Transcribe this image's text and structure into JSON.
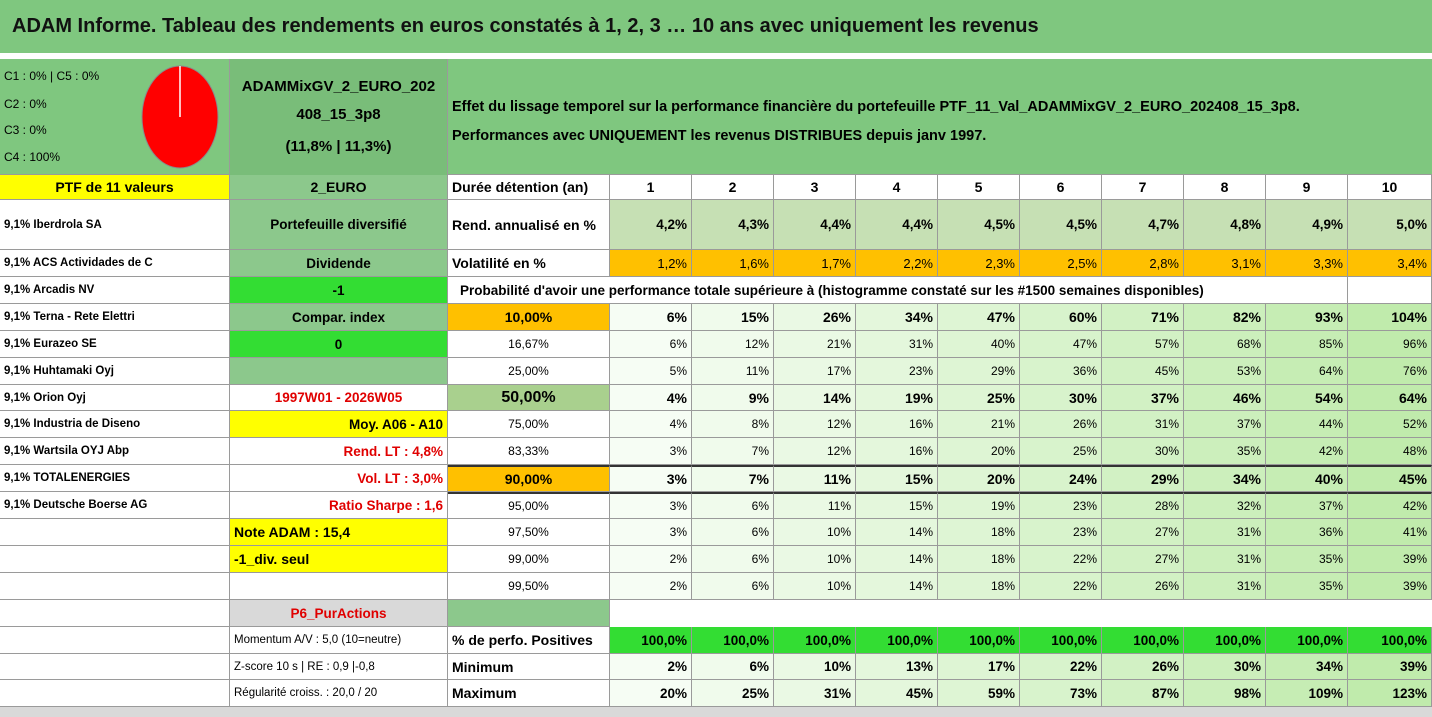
{
  "title": "ADAM Informe. Tableau des rendements en euros constatés à 1, 2, 3 … 10 ans avec uniquement les revenus",
  "pie": {
    "legend": [
      "C1 : 0% | C5 : 0%",
      "C2 : 0%",
      "C3 : 0%",
      "C4 : 100%"
    ]
  },
  "portfolio": {
    "name_lines": [
      "ADAMMixGV_2_EURO_202",
      "408_15_3p8"
    ],
    "ratios": "(11,8% | 11,3%)"
  },
  "description": [
    "Effet du lissage temporel sur la performance financière du portefeuille PTF_11_Val_ADAMMixGV_2_EURO_202408_15_3p8.",
    "Performances avec UNIQUEMENT les revenus DISTRIBUES depuis janv 1997."
  ],
  "table": {
    "header": [
      "PTF de 11 valeurs",
      "2_EURO",
      "Durée détention (an)",
      "1",
      "2",
      "3",
      "4",
      "5",
      "6",
      "7",
      "8",
      "9",
      "10"
    ],
    "rows": [
      [
        "9,1% Iberdrola SA",
        "Portefeuille diversifié",
        "Rend. annualisé en %",
        "4,2%",
        "4,3%",
        "4,4%",
        "4,4%",
        "4,5%",
        "4,5%",
        "4,7%",
        "4,8%",
        "4,9%",
        "5,0%"
      ],
      [
        "9,1% ACS Actividades de C",
        "Dividende",
        "Volatilité en %",
        "1,2%",
        "1,6%",
        "1,7%",
        "2,2%",
        "2,3%",
        "2,5%",
        "2,8%",
        "3,1%",
        "3,3%",
        "3,4%"
      ],
      [
        "9,1% Arcadis NV",
        "-1",
        "Probabilité d'avoir une performance totale supérieure à (histogramme constaté sur les #1500 semaines disponibles)"
      ],
      [
        "9,1% Terna - Rete Elettri",
        "Compar. index",
        "10,00%",
        "6%",
        "15%",
        "26%",
        "34%",
        "47%",
        "60%",
        "71%",
        "82%",
        "93%",
        "104%"
      ],
      [
        "9,1% Eurazeo SE",
        "0",
        "16,67%",
        "6%",
        "12%",
        "21%",
        "31%",
        "40%",
        "47%",
        "57%",
        "68%",
        "85%",
        "96%"
      ],
      [
        "9,1% Huhtamaki Oyj",
        null,
        "25,00%",
        "5%",
        "11%",
        "17%",
        "23%",
        "29%",
        "36%",
        "45%",
        "53%",
        "64%",
        "76%"
      ],
      [
        "9,1% Orion Oyj",
        "1997W01 - 2026W05",
        "50,00%",
        "4%",
        "9%",
        "14%",
        "19%",
        "25%",
        "30%",
        "37%",
        "46%",
        "54%",
        "64%"
      ],
      [
        "9,1% Industria de Diseno",
        "Moy. A06 - A10",
        "75,00%",
        "4%",
        "8%",
        "12%",
        "16%",
        "21%",
        "26%",
        "31%",
        "37%",
        "44%",
        "52%"
      ],
      [
        "9,1% Wartsila OYJ Abp",
        "Rend. LT : 4,8%",
        "83,33%",
        "3%",
        "7%",
        "12%",
        "16%",
        "20%",
        "25%",
        "30%",
        "35%",
        "42%",
        "48%"
      ],
      [
        "9,1% TOTALENERGIES",
        "Vol. LT : 3,0%",
        "90,00%",
        "3%",
        "7%",
        "11%",
        "15%",
        "20%",
        "24%",
        "29%",
        "34%",
        "40%",
        "45%"
      ],
      [
        "9,1% Deutsche Boerse AG",
        "Ratio Sharpe : 1,6",
        "95,00%",
        "3%",
        "6%",
        "11%",
        "15%",
        "19%",
        "23%",
        "28%",
        "32%",
        "37%",
        "42%"
      ],
      [
        null,
        "Note ADAM : 15,4",
        "97,50%",
        "3%",
        "6%",
        "10%",
        "14%",
        "18%",
        "23%",
        "27%",
        "31%",
        "36%",
        "41%"
      ],
      [
        null,
        "-1_div. seul",
        "99,00%",
        "2%",
        "6%",
        "10%",
        "14%",
        "18%",
        "22%",
        "27%",
        "31%",
        "35%",
        "39%"
      ],
      [
        null,
        null,
        "99,50%",
        "2%",
        "6%",
        "10%",
        "14%",
        "18%",
        "22%",
        "26%",
        "31%",
        "35%",
        "39%"
      ],
      [
        null,
        "P6_PurActions"
      ],
      [
        null,
        "Momentum A/V : 5,0 (10=neutre)",
        "% de perfo. Positives",
        "100,0%",
        "100,0%",
        "100,0%",
        "100,0%",
        "100,0%",
        "100,0%",
        "100,0%",
        "100,0%",
        "100,0%",
        "100,0%"
      ],
      [
        null,
        "Z-score 10 s | RE : 0,9 |-0,8",
        "Minimum",
        "2%",
        "6%",
        "10%",
        "13%",
        "17%",
        "22%",
        "26%",
        "30%",
        "34%",
        "39%"
      ],
      [
        null,
        "Régularité croiss. : 20,0 / 20",
        "Maximum",
        "20%",
        "25%",
        "31%",
        "45%",
        "59%",
        "73%",
        "87%",
        "98%",
        "109%",
        "123%"
      ]
    ]
  }
}
